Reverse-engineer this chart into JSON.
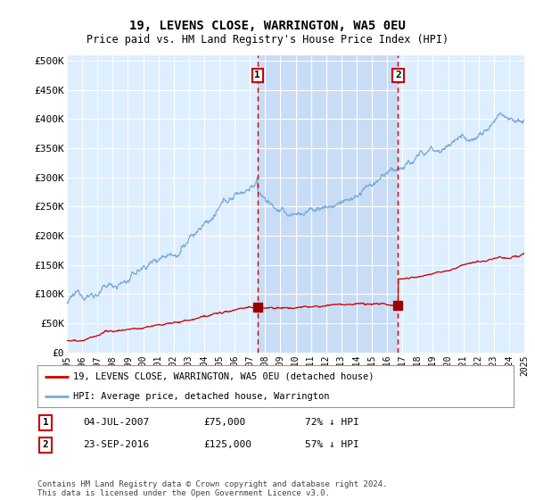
{
  "title": "19, LEVENS CLOSE, WARRINGTON, WA5 0EU",
  "subtitle": "Price paid vs. HM Land Registry's House Price Index (HPI)",
  "ylabel_ticks": [
    "£0",
    "£50K",
    "£100K",
    "£150K",
    "£200K",
    "£250K",
    "£300K",
    "£350K",
    "£400K",
    "£450K",
    "£500K"
  ],
  "ytick_values": [
    0,
    50000,
    100000,
    150000,
    200000,
    250000,
    300000,
    350000,
    400000,
    450000,
    500000
  ],
  "x_start_year": 1995,
  "x_end_year": 2025,
  "sale1_date": 2007.5,
  "sale1_price": 75000,
  "sale1_label": "1",
  "sale1_hpi_text": "04-JUL-2007",
  "sale1_price_text": "£75,000",
  "sale1_pct_text": "72% ↓ HPI",
  "sale2_date": 2016.72,
  "sale2_price": 125000,
  "sale2_label": "2",
  "sale2_hpi_text": "23-SEP-2016",
  "sale2_price_text": "£125,000",
  "sale2_pct_text": "57% ↓ HPI",
  "legend_line1": "19, LEVENS CLOSE, WARRINGTON, WA5 0EU (detached house)",
  "legend_line2": "HPI: Average price, detached house, Warrington",
  "footer": "Contains HM Land Registry data © Crown copyright and database right 2024.\nThis data is licensed under the Open Government Licence v3.0.",
  "line_red": "#cc0000",
  "line_blue": "#7aaadd",
  "bg_plot": "#ddeeff",
  "bg_between": "#c8dcf5",
  "bg_fig": "#ffffff",
  "grid_color": "#ffffff",
  "vline_color": "#cc0000",
  "marker_color": "#990000",
  "box_color": "#cc0000"
}
